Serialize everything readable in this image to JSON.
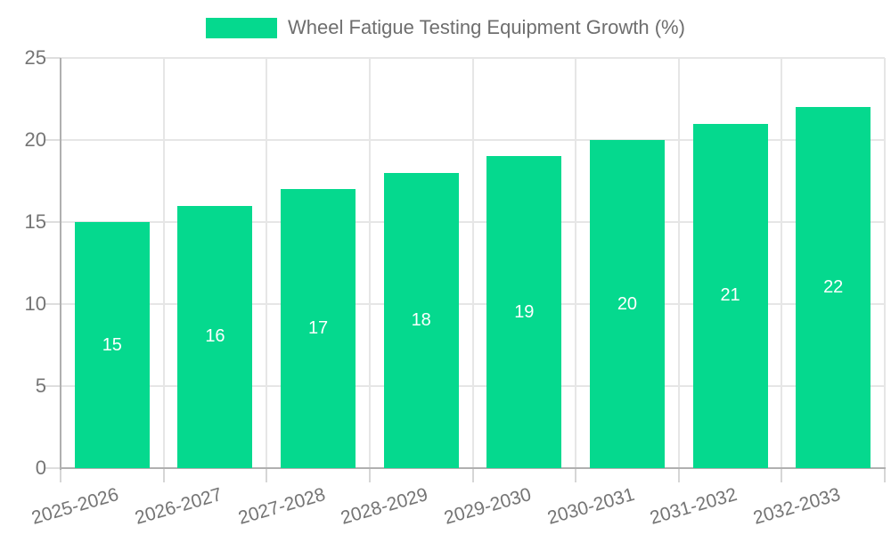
{
  "chart_data": {
    "type": "bar",
    "title": "Wheel Fatigue Testing Equipment Growth (%)",
    "categories": [
      "2025-2026",
      "2026-2027",
      "2027-2028",
      "2028-2029",
      "2029-2030",
      "2030-2031",
      "2031-2032",
      "2032-2033"
    ],
    "values": [
      15,
      16,
      17,
      18,
      19,
      20,
      21,
      22
    ],
    "xlabel": "",
    "ylabel": "",
    "ylim": [
      0,
      25
    ],
    "yticks": [
      0,
      5,
      10,
      15,
      20,
      25
    ],
    "grid": true,
    "legend_position": "top-center",
    "value_labels": "centered-inside-bars",
    "colors": {
      "bar": "#05D98E",
      "value_label_text": "#ffffff",
      "axis_text": "#757575",
      "legend_text": "#6e6e6e",
      "gridline": "#e6e6e6",
      "axis_line": "#b0b0b0",
      "background": "#ffffff"
    }
  }
}
